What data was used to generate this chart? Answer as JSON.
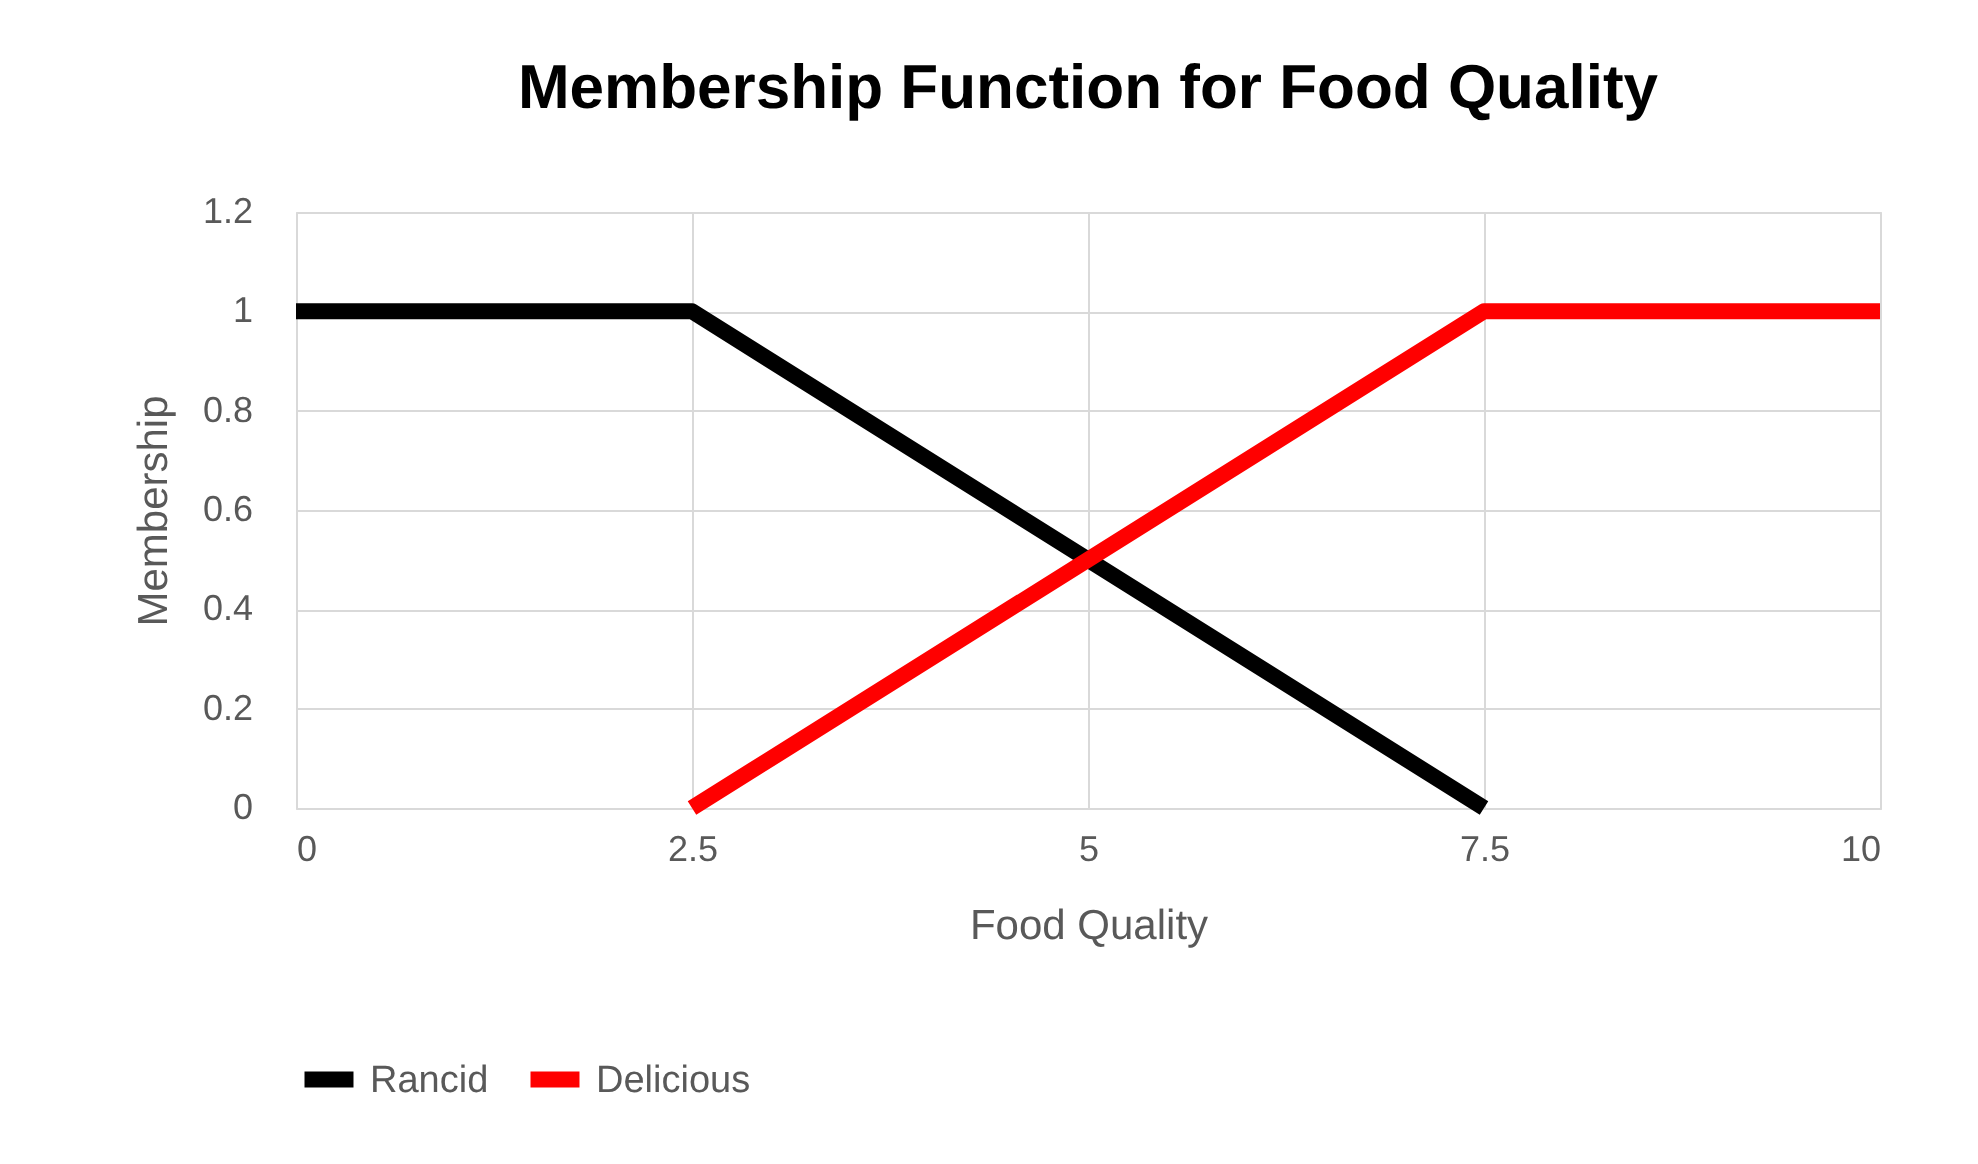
{
  "chart_data": {
    "type": "line",
    "title": "Membership Function for Food Quality",
    "xlabel": "Food Quality",
    "ylabel": "Membership",
    "xlim": [
      0,
      10
    ],
    "xticks": [
      0,
      2.5,
      5,
      7.5,
      10
    ],
    "ylim": [
      0,
      1.2
    ],
    "yticks": [
      0,
      0.2,
      0.4,
      0.6,
      0.8,
      1,
      1.2
    ],
    "series": [
      {
        "name": "Rancid",
        "color": "#000000",
        "x": [
          0,
          2.5,
          7.5
        ],
        "values": [
          1,
          1,
          0
        ]
      },
      {
        "name": "Delicious",
        "color": "#ff0000",
        "x": [
          2.5,
          7.5,
          10
        ],
        "values": [
          0,
          1,
          1
        ]
      }
    ],
    "grid": true,
    "legend": "bottom",
    "marker": "none",
    "line_style": "solid"
  }
}
